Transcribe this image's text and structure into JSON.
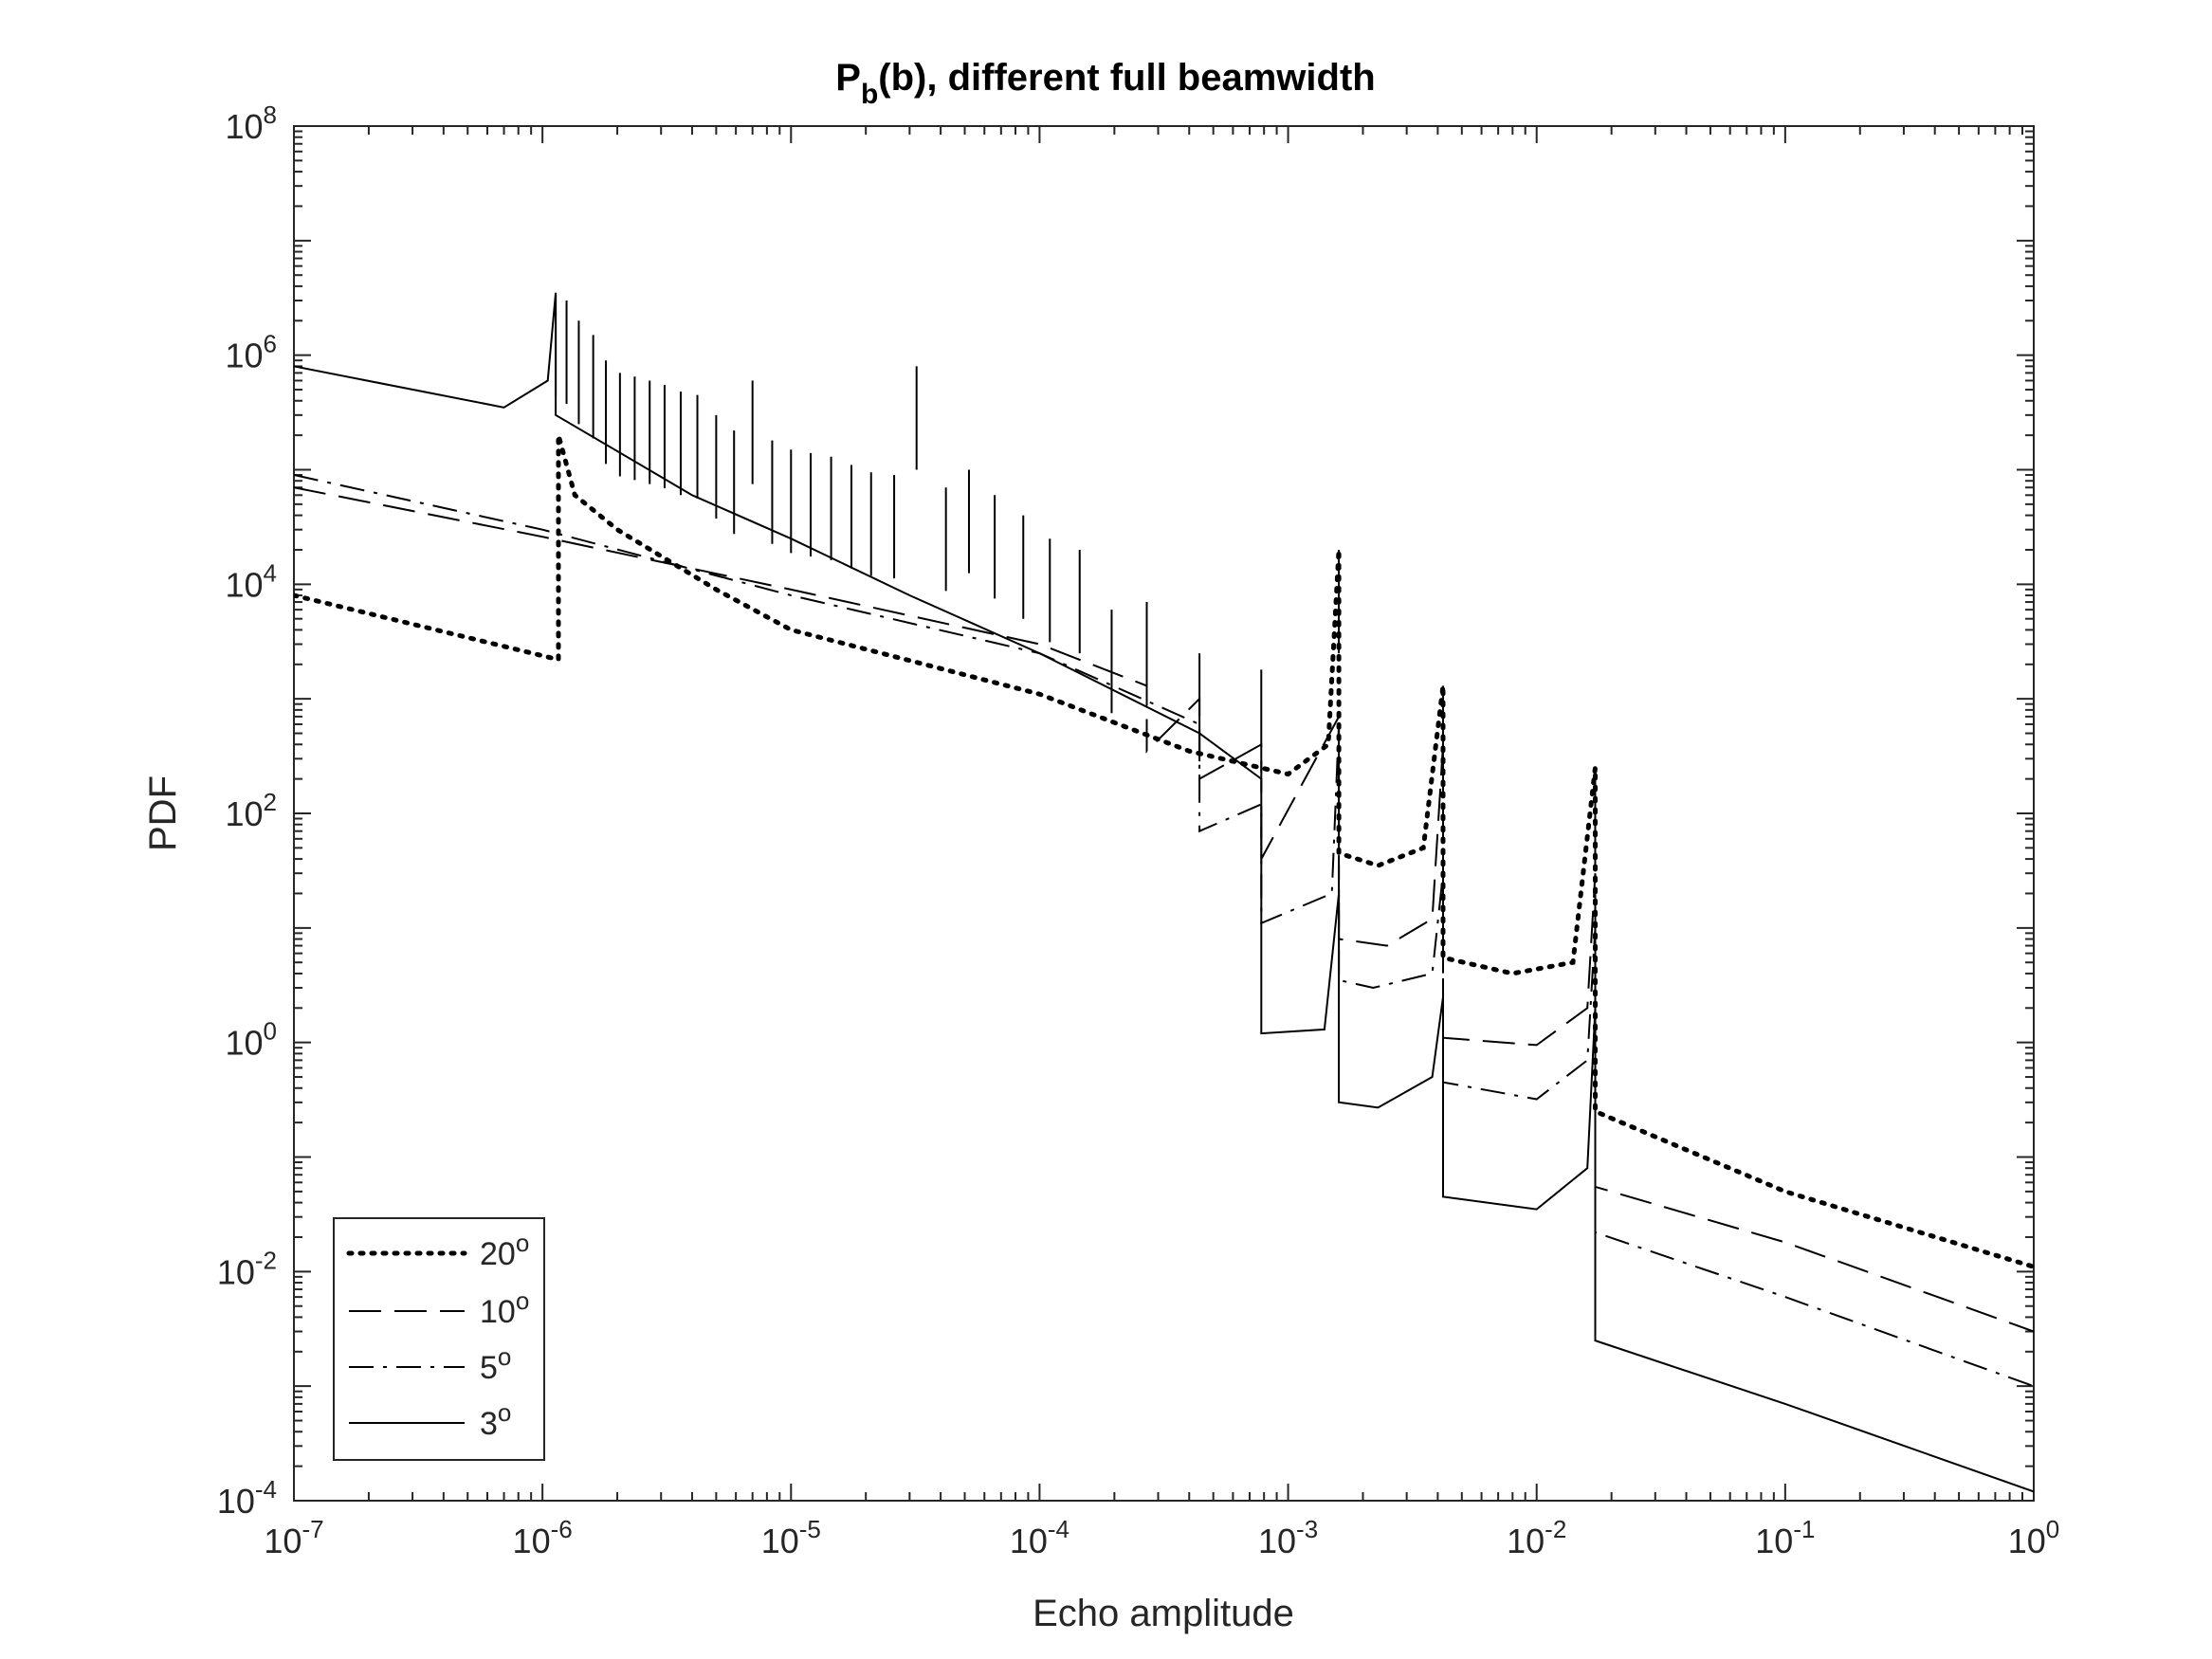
{
  "chart_data": {
    "type": "line",
    "title": {
      "main": "P",
      "sub": "b",
      "rest": "(b), different full beamwidth"
    },
    "xlabel": "Echo amplitude",
    "ylabel": "PDF",
    "xscale": "log",
    "yscale": "log",
    "xlim": [
      1e-07,
      1
    ],
    "ylim": [
      0.0001,
      100000000.0
    ],
    "grid": false,
    "legend_position": "bottom-left",
    "x_ticks": [
      {
        "value": 1e-07,
        "base": "10",
        "exp": "-7"
      },
      {
        "value": 1e-06,
        "base": "10",
        "exp": "-6"
      },
      {
        "value": 1e-05,
        "base": "10",
        "exp": "-5"
      },
      {
        "value": 0.0001,
        "base": "10",
        "exp": "-4"
      },
      {
        "value": 0.001,
        "base": "10",
        "exp": "-3"
      },
      {
        "value": 0.01,
        "base": "10",
        "exp": "-2"
      },
      {
        "value": 0.1,
        "base": "10",
        "exp": "-1"
      },
      {
        "value": 1,
        "base": "10",
        "exp": "0"
      }
    ],
    "y_ticks": [
      {
        "value": 0.0001,
        "base": "10",
        "exp": "-4"
      },
      {
        "value": 0.01,
        "base": "10",
        "exp": "-2"
      },
      {
        "value": 1,
        "base": "10",
        "exp": "0"
      },
      {
        "value": 100.0,
        "base": "10",
        "exp": "2"
      },
      {
        "value": 10000.0,
        "base": "10",
        "exp": "4"
      },
      {
        "value": 1000000.0,
        "base": "10",
        "exp": "6"
      },
      {
        "value": 100000000.0,
        "base": "10",
        "exp": "8"
      }
    ],
    "series": [
      {
        "name": "20",
        "legend_label": {
          "value": "20",
          "sup": "o"
        },
        "style": "dotted",
        "color": "#000000",
        "points": [
          [
            1e-07,
            8000
          ],
          [
            1.16e-06,
            2200
          ],
          [
            1.16e-06,
            200000
          ],
          [
            1.35e-06,
            60000
          ],
          [
            2e-06,
            30000
          ],
          [
            5e-06,
            9000
          ],
          [
            1e-05,
            4000
          ],
          [
            0.0001,
            1100
          ],
          [
            0.0004,
            350
          ],
          [
            0.001,
            220
          ],
          [
            0.00145,
            400
          ],
          [
            0.0016,
            20000
          ],
          [
            0.0016,
            45
          ],
          [
            0.0023,
            35
          ],
          [
            0.0035,
            50
          ],
          [
            0.0042,
            1300
          ],
          [
            0.0042,
            5.5
          ],
          [
            0.008,
            4
          ],
          [
            0.014,
            5
          ],
          [
            0.0172,
            250
          ],
          [
            0.0172,
            0.25
          ],
          [
            0.1,
            0.05
          ],
          [
            1,
            0.011
          ]
        ]
      },
      {
        "name": "10",
        "legend_label": {
          "value": "10",
          "sup": "o"
        },
        "style": "dashed",
        "color": "#000000",
        "points": [
          [
            1e-07,
            70000
          ],
          [
            1e-06,
            26000
          ],
          [
            1e-05,
            9000
          ],
          [
            0.0001,
            3000
          ],
          [
            0.00027,
            1300
          ],
          [
            0.00027,
            350
          ],
          [
            0.00044,
            1000
          ],
          [
            0.00044,
            200
          ],
          [
            0.00078,
            400
          ],
          [
            0.00078,
            40
          ],
          [
            0.0016,
            700
          ],
          [
            0.0016,
            8
          ],
          [
            0.0025,
            7
          ],
          [
            0.0038,
            12
          ],
          [
            0.0042,
            400
          ],
          [
            0.0042,
            1.1
          ],
          [
            0.01,
            0.95
          ],
          [
            0.016,
            2
          ],
          [
            0.0172,
            30
          ],
          [
            0.0172,
            0.055
          ],
          [
            0.1,
            0.018
          ],
          [
            1,
            0.003
          ]
        ]
      },
      {
        "name": "5",
        "legend_label": {
          "value": "5",
          "sup": "o"
        },
        "style": "dashdot",
        "color": "#000000",
        "points": [
          [
            1e-07,
            90000
          ],
          [
            1e-06,
            30000
          ],
          [
            1e-05,
            8000
          ],
          [
            0.0001,
            2500
          ],
          [
            0.00044,
            600
          ],
          [
            0.00044,
            70
          ],
          [
            0.00078,
            120
          ],
          [
            0.00078,
            11
          ],
          [
            0.0015,
            20
          ],
          [
            0.0016,
            600
          ],
          [
            0.0016,
            3.5
          ],
          [
            0.0022,
            3
          ],
          [
            0.0038,
            4
          ],
          [
            0.0042,
            30
          ],
          [
            0.0042,
            0.45
          ],
          [
            0.01,
            0.32
          ],
          [
            0.016,
            0.7
          ],
          [
            0.0172,
            10
          ],
          [
            0.0172,
            0.022
          ],
          [
            0.1,
            0.006
          ],
          [
            1,
            0.001
          ]
        ]
      },
      {
        "name": "3",
        "legend_label": {
          "value": "3",
          "sup": "o"
        },
        "style": "solid",
        "color": "#000000",
        "points": [
          [
            1e-07,
            800000
          ],
          [
            7e-07,
            350000
          ],
          [
            1.05e-06,
            600000
          ],
          [
            1.13e-06,
            3500000
          ],
          [
            1.13e-06,
            300000
          ],
          [
            4e-06,
            60000
          ],
          [
            1e-05,
            25000
          ],
          [
            3e-05,
            8000
          ],
          [
            0.0001,
            2500
          ],
          [
            0.00044,
            500
          ],
          [
            0.00078,
            200
          ],
          [
            0.00078,
            1.2
          ],
          [
            0.0014,
            1.3
          ],
          [
            0.0016,
            20
          ],
          [
            0.0016,
            0.3
          ],
          [
            0.0023,
            0.27
          ],
          [
            0.0038,
            0.5
          ],
          [
            0.0042,
            2.5
          ],
          [
            0.0042,
            0.045
          ],
          [
            0.01,
            0.035
          ],
          [
            0.016,
            0.08
          ],
          [
            0.0172,
            2
          ],
          [
            0.0172,
            0.0025
          ],
          [
            0.1,
            0.0007
          ],
          [
            1,
            0.00012
          ]
        ]
      }
    ],
    "spikes": {
      "x": [
        1.13e-06,
        1.25e-06,
        1.4e-06,
        1.6e-06,
        1.8e-06,
        2.05e-06,
        2.35e-06,
        2.7e-06,
        3.1e-06,
        3.6e-06,
        4.2e-06,
        5e-06,
        5.9e-06,
        7e-06,
        8.4e-06,
        1e-05,
        1.2e-05,
        1.45e-05,
        1.75e-05,
        2.1e-05,
        2.6e-05,
        3.2e-05,
        4.2e-05,
        5.2e-05,
        6.6e-05,
        8.6e-05,
        0.00011,
        0.000145,
        0.000195,
        0.00027,
        0.00044,
        0.00078,
        0.0016,
        0.0042,
        0.0172
      ],
      "peak": [
        3500000,
        3000000,
        2000000,
        1500000,
        900000,
        700000,
        650000,
        600000,
        550000,
        480000,
        450000,
        300000,
        220000,
        600000,
        180000,
        150000,
        140000,
        130000,
        110000,
        95000,
        90000,
        800000,
        70000,
        100000,
        60000,
        40000,
        25000,
        20000,
        6000,
        7000,
        2500,
        1800,
        20000,
        1300,
        250
      ]
    }
  },
  "legend": {
    "entries": [
      {
        "value": "20",
        "sup": "o"
      },
      {
        "value": "10",
        "sup": "o"
      },
      {
        "value": "5",
        "sup": "o"
      },
      {
        "value": "3",
        "sup": "o"
      }
    ]
  }
}
